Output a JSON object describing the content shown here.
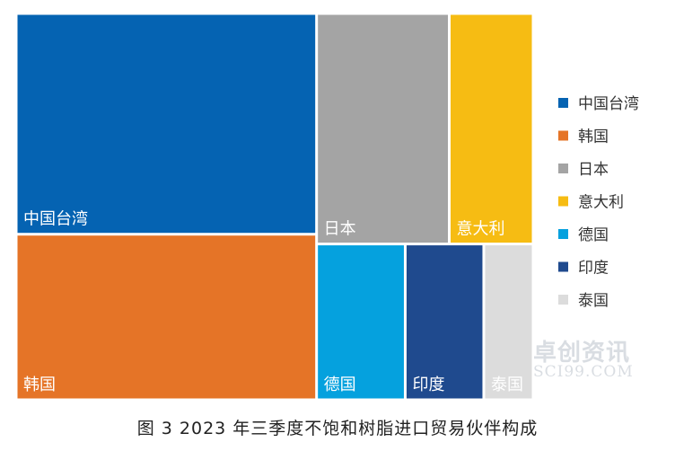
{
  "chart_data": {
    "type": "treemap",
    "title": "",
    "categories": [
      "中国台湾",
      "韩国",
      "日本",
      "意大利",
      "德国",
      "印度",
      "泰国"
    ],
    "values": [
      33.6,
      25.2,
      15.5,
      9.8,
      7.0,
      6.2,
      3.9
    ],
    "colors": [
      "#0563b2",
      "#e57427",
      "#a4a4a4",
      "#f6bc13",
      "#05a1de",
      "#1f4a8e",
      "#dcdcdc"
    ],
    "legend": {
      "position": "right",
      "items": [
        "中国台湾",
        "韩国",
        "日本",
        "意大利",
        "德国",
        "印度",
        "泰国"
      ]
    }
  },
  "caption": "图 3 2023 年三季度不饱和树脂进口贸易伙伴构成",
  "watermark": {
    "cn": "卓创资讯",
    "en": "SCI99.COM"
  }
}
